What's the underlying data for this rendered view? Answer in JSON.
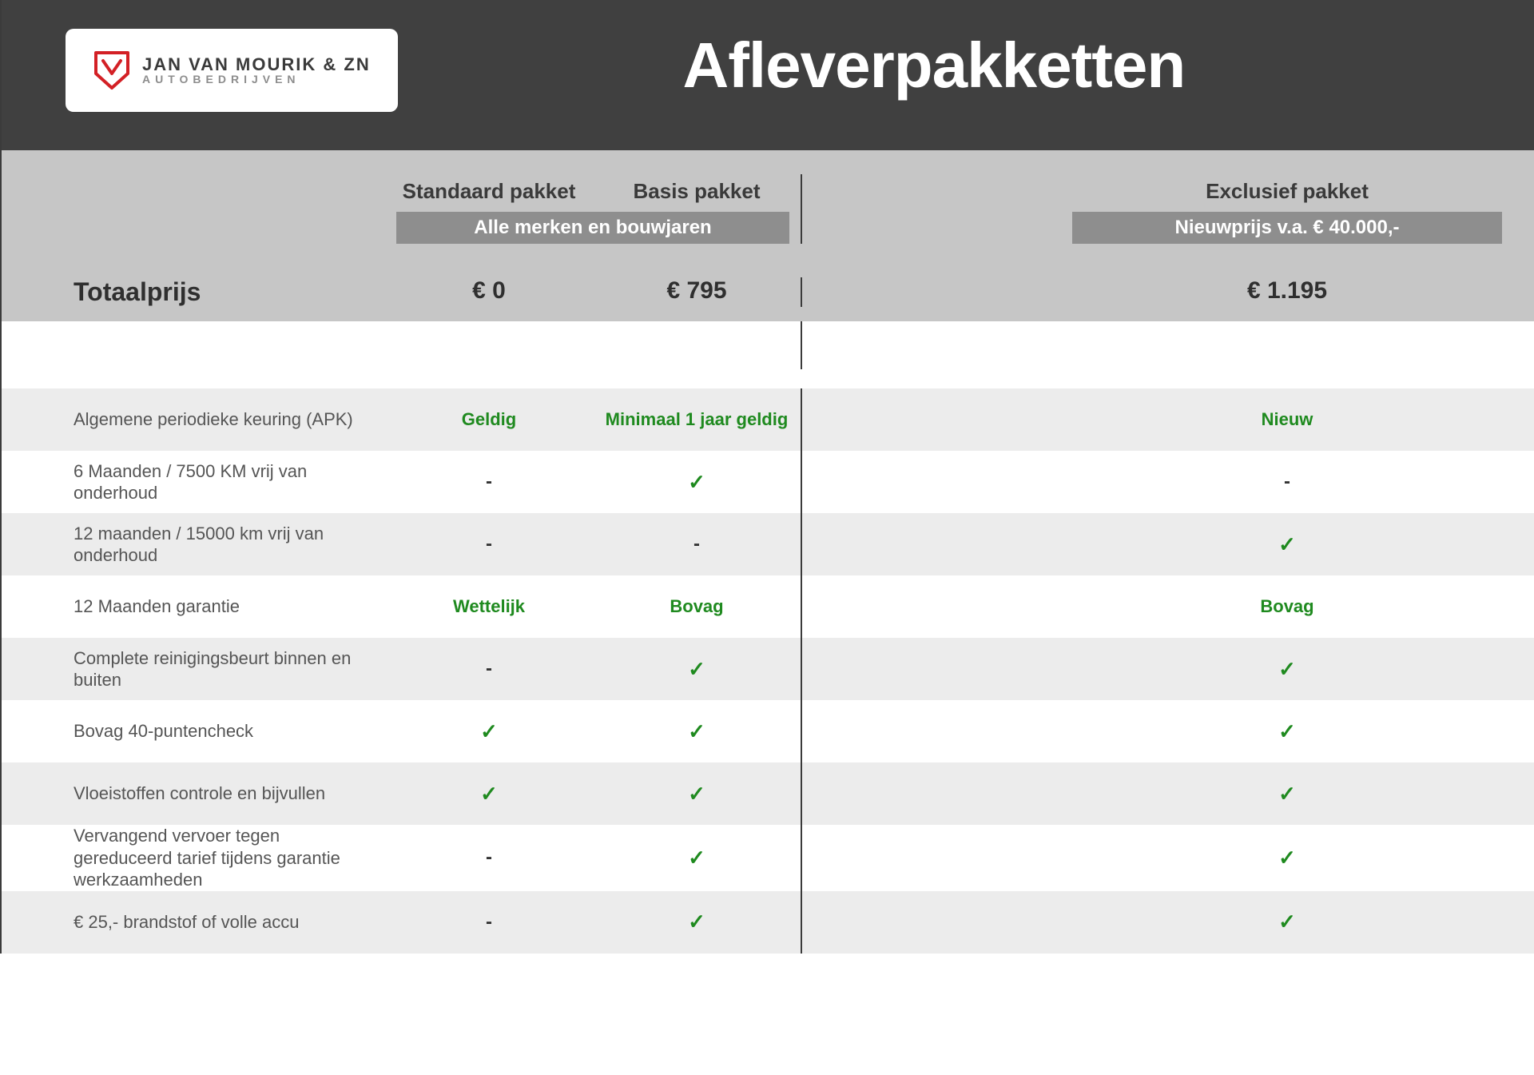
{
  "logo": {
    "name": "JAN VAN MOURIK & ZN",
    "sub": "AUTOBEDRIJVEN",
    "brand_color": "#d32025"
  },
  "title": "Afleverpakketten",
  "colors": {
    "topbar_bg": "#404040",
    "band_bg": "#c6c6c6",
    "tag_bg": "#8e8e8e",
    "green": "#1f8a1f",
    "row_alt_bg": "#ececec",
    "text_dark": "#2f2f2f"
  },
  "packages": {
    "standaard": {
      "name": "Standaard pakket",
      "price": "€ 0"
    },
    "basis": {
      "name": "Basis pakket",
      "price": "€ 795"
    },
    "exclusief": {
      "name": "Exclusief pakket",
      "price": "€ 1.195"
    }
  },
  "tags": {
    "left": "Alle merken en bouwjaren",
    "right": "Nieuwprijs v.a. € 40.000,-"
  },
  "totals_label": "Totaalprijs",
  "features": [
    {
      "label": "Algemene periodieke keuring (APK)",
      "s": {
        "type": "text",
        "value": "Geldig"
      },
      "b": {
        "type": "text",
        "value": "Minimaal 1 jaar geldig"
      },
      "e": {
        "type": "text",
        "value": "Nieuw"
      }
    },
    {
      "label": "6 Maanden / 7500 KM vrij van onderhoud",
      "s": {
        "type": "dash"
      },
      "b": {
        "type": "check"
      },
      "e": {
        "type": "dash"
      }
    },
    {
      "label": "12 maanden / 15000 km vrij van onderhoud",
      "s": {
        "type": "dash"
      },
      "b": {
        "type": "dash"
      },
      "e": {
        "type": "check"
      }
    },
    {
      "label": "12 Maanden  garantie",
      "s": {
        "type": "text",
        "value": "Wettelijk"
      },
      "b": {
        "type": "text",
        "value": "Bovag"
      },
      "e": {
        "type": "text",
        "value": "Bovag"
      }
    },
    {
      "label": "Complete reinigingsbeurt binnen en buiten",
      "s": {
        "type": "dash"
      },
      "b": {
        "type": "check"
      },
      "e": {
        "type": "check"
      }
    },
    {
      "label": "Bovag 40-puntencheck",
      "s": {
        "type": "check"
      },
      "b": {
        "type": "check"
      },
      "e": {
        "type": "check"
      }
    },
    {
      "label": "Vloeistoffen controle en bijvullen",
      "s": {
        "type": "check"
      },
      "b": {
        "type": "check"
      },
      "e": {
        "type": "check"
      }
    },
    {
      "label": "Vervangend vervoer tegen gereduceerd tarief tijdens garantie werkzaamheden",
      "s": {
        "type": "dash"
      },
      "b": {
        "type": "check"
      },
      "e": {
        "type": "check"
      }
    },
    {
      "label": "€ 25,- brandstof of  volle accu",
      "s": {
        "type": "dash"
      },
      "b": {
        "type": "check"
      },
      "e": {
        "type": "check"
      }
    }
  ]
}
